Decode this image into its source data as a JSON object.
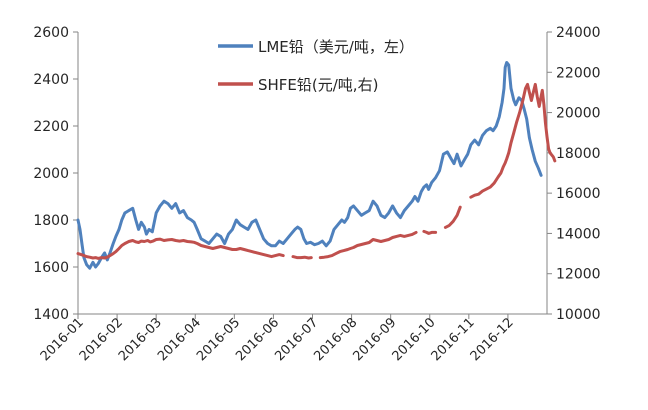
{
  "chart_data": {
    "type": "line",
    "title": "",
    "xlabel": "",
    "ylabel": "",
    "y2label": "",
    "grid": false,
    "legend_position": "top-center",
    "x_categories": [
      "2016-01",
      "2016-02",
      "2016-03",
      "2016-04",
      "2016-05",
      "2016-06",
      "2016-07",
      "2016-08",
      "2016-09",
      "2016-10",
      "2016-11",
      "2016-12"
    ],
    "x_range": [
      0,
      12
    ],
    "ylim": [
      1400,
      2600
    ],
    "yticks": [
      1400,
      1600,
      1800,
      2000,
      2200,
      2400,
      2600
    ],
    "y2lim": [
      10000,
      24000
    ],
    "y2ticks": [
      10000,
      12000,
      14000,
      16000,
      18000,
      20000,
      22000,
      24000
    ],
    "series": [
      {
        "name": "LME铅（美元/吨，左）",
        "axis": "left",
        "color": "#4f81bd",
        "points": [
          [
            0.0,
            1800
          ],
          [
            0.05,
            1760
          ],
          [
            0.1,
            1700
          ],
          [
            0.15,
            1640
          ],
          [
            0.22,
            1610
          ],
          [
            0.3,
            1595
          ],
          [
            0.38,
            1620
          ],
          [
            0.45,
            1600
          ],
          [
            0.52,
            1615
          ],
          [
            0.6,
            1640
          ],
          [
            0.68,
            1660
          ],
          [
            0.75,
            1630
          ],
          [
            0.82,
            1660
          ],
          [
            0.9,
            1700
          ],
          [
            0.97,
            1730
          ],
          [
            1.05,
            1760
          ],
          [
            1.12,
            1800
          ],
          [
            1.2,
            1830
          ],
          [
            1.3,
            1840
          ],
          [
            1.4,
            1850
          ],
          [
            1.48,
            1800
          ],
          [
            1.55,
            1760
          ],
          [
            1.62,
            1790
          ],
          [
            1.7,
            1770
          ],
          [
            1.75,
            1740
          ],
          [
            1.82,
            1760
          ],
          [
            1.9,
            1750
          ],
          [
            2.0,
            1830
          ],
          [
            2.1,
            1860
          ],
          [
            2.2,
            1880
          ],
          [
            2.3,
            1870
          ],
          [
            2.4,
            1850
          ],
          [
            2.5,
            1870
          ],
          [
            2.6,
            1830
          ],
          [
            2.7,
            1840
          ],
          [
            2.8,
            1810
          ],
          [
            2.9,
            1800
          ],
          [
            2.97,
            1790
          ],
          [
            3.05,
            1760
          ],
          [
            3.15,
            1720
          ],
          [
            3.25,
            1710
          ],
          [
            3.35,
            1700
          ],
          [
            3.45,
            1720
          ],
          [
            3.55,
            1740
          ],
          [
            3.65,
            1730
          ],
          [
            3.75,
            1700
          ],
          [
            3.85,
            1740
          ],
          [
            3.95,
            1760
          ],
          [
            4.05,
            1800
          ],
          [
            4.15,
            1780
          ],
          [
            4.25,
            1770
          ],
          [
            4.35,
            1760
          ],
          [
            4.45,
            1790
          ],
          [
            4.55,
            1800
          ],
          [
            4.65,
            1760
          ],
          [
            4.75,
            1720
          ],
          [
            4.85,
            1700
          ],
          [
            4.95,
            1690
          ],
          [
            5.05,
            1690
          ],
          [
            5.15,
            1710
          ],
          [
            5.25,
            1700
          ],
          [
            5.35,
            1720
          ],
          [
            5.45,
            1740
          ],
          [
            5.55,
            1760
          ],
          [
            5.62,
            1770
          ],
          [
            5.7,
            1760
          ],
          [
            5.78,
            1720
          ],
          [
            5.85,
            1700
          ],
          [
            5.95,
            1705
          ],
          [
            6.05,
            1695
          ],
          [
            6.15,
            1700
          ],
          [
            6.25,
            1710
          ],
          [
            6.35,
            1690
          ],
          [
            6.45,
            1710
          ],
          [
            6.55,
            1760
          ],
          [
            6.65,
            1780
          ],
          [
            6.75,
            1800
          ],
          [
            6.82,
            1790
          ],
          [
            6.9,
            1810
          ],
          [
            6.97,
            1850
          ],
          [
            7.05,
            1860
          ],
          [
            7.15,
            1840
          ],
          [
            7.25,
            1820
          ],
          [
            7.35,
            1830
          ],
          [
            7.45,
            1840
          ],
          [
            7.55,
            1880
          ],
          [
            7.65,
            1860
          ],
          [
            7.75,
            1820
          ],
          [
            7.85,
            1810
          ],
          [
            7.95,
            1830
          ],
          [
            8.05,
            1860
          ],
          [
            8.15,
            1830
          ],
          [
            8.25,
            1810
          ],
          [
            8.35,
            1840
          ],
          [
            8.45,
            1860
          ],
          [
            8.55,
            1880
          ],
          [
            8.62,
            1900
          ],
          [
            8.7,
            1880
          ],
          [
            8.78,
            1920
          ],
          [
            8.85,
            1940
          ],
          [
            8.92,
            1950
          ],
          [
            8.97,
            1930
          ],
          [
            9.05,
            1960
          ],
          [
            9.15,
            1980
          ],
          [
            9.25,
            2010
          ],
          [
            9.35,
            2080
          ],
          [
            9.45,
            2090
          ],
          [
            9.55,
            2060
          ],
          [
            9.62,
            2040
          ],
          [
            9.7,
            2080
          ],
          [
            9.8,
            2030
          ],
          [
            9.9,
            2060
          ],
          [
            9.97,
            2080
          ],
          [
            10.05,
            2120
          ],
          [
            10.15,
            2140
          ],
          [
            10.25,
            2120
          ],
          [
            10.35,
            2160
          ],
          [
            10.45,
            2180
          ],
          [
            10.55,
            2190
          ],
          [
            10.62,
            2180
          ],
          [
            10.7,
            2200
          ],
          [
            10.78,
            2240
          ],
          [
            10.85,
            2300
          ],
          [
            10.9,
            2360
          ],
          [
            10.93,
            2450
          ],
          [
            10.97,
            2470
          ],
          [
            11.02,
            2460
          ],
          [
            11.08,
            2360
          ],
          [
            11.15,
            2310
          ],
          [
            11.2,
            2290
          ],
          [
            11.28,
            2320
          ],
          [
            11.35,
            2310
          ],
          [
            11.42,
            2270
          ],
          [
            11.48,
            2230
          ],
          [
            11.55,
            2150
          ],
          [
            11.62,
            2100
          ],
          [
            11.7,
            2050
          ],
          [
            11.78,
            2020
          ],
          [
            11.85,
            1990
          ]
        ]
      },
      {
        "name": "SHFE铅(元/吨,右)",
        "axis": "right",
        "color": "#c0504d",
        "points": [
          [
            0.0,
            13000
          ],
          [
            0.08,
            12950
          ],
          [
            0.15,
            12900
          ],
          [
            0.22,
            12850
          ],
          [
            0.3,
            12820
          ],
          [
            0.38,
            12780
          ],
          [
            0.45,
            12800
          ],
          [
            0.52,
            12760
          ],
          [
            0.6,
            12800
          ],
          [
            0.68,
            12780
          ],
          [
            0.75,
            12820
          ],
          [
            0.82,
            12900
          ],
          [
            0.9,
            13000
          ],
          [
            0.97,
            13100
          ],
          [
            1.05,
            13250
          ],
          [
            1.12,
            13400
          ],
          [
            1.2,
            13500
          ],
          [
            1.3,
            13600
          ],
          [
            1.4,
            13650
          ],
          [
            1.48,
            13580
          ],
          [
            1.55,
            13550
          ],
          [
            1.62,
            13620
          ],
          [
            1.7,
            13600
          ],
          [
            1.78,
            13650
          ],
          [
            1.85,
            13580
          ],
          [
            1.92,
            13620
          ],
          [
            2.0,
            13700
          ],
          [
            2.1,
            13720
          ],
          [
            2.2,
            13650
          ],
          [
            2.3,
            13680
          ],
          [
            2.4,
            13700
          ],
          [
            2.5,
            13650
          ],
          [
            2.6,
            13620
          ],
          [
            2.7,
            13650
          ],
          [
            2.8,
            13600
          ],
          [
            2.9,
            13580
          ],
          [
            2.97,
            13560
          ],
          [
            3.05,
            13500
          ],
          [
            3.15,
            13400
          ],
          [
            3.25,
            13350
          ],
          [
            3.35,
            13300
          ],
          [
            3.45,
            13250
          ],
          [
            3.55,
            13300
          ],
          [
            3.65,
            13350
          ],
          [
            3.75,
            13300
          ],
          [
            3.85,
            13250
          ],
          [
            3.95,
            13200
          ],
          [
            4.05,
            13200
          ],
          [
            4.15,
            13250
          ],
          [
            4.25,
            13200
          ],
          [
            4.35,
            13150
          ],
          [
            4.45,
            13100
          ],
          [
            4.55,
            13050
          ],
          [
            4.65,
            13000
          ],
          [
            4.75,
            12950
          ],
          [
            4.85,
            12900
          ],
          [
            4.95,
            12850
          ],
          [
            5.05,
            12900
          ],
          [
            5.15,
            12950
          ],
          [
            5.25,
            12900
          ],
          [
            5.5,
            12850
          ],
          [
            5.6,
            12800
          ],
          [
            5.7,
            12800
          ],
          [
            5.8,
            12820
          ],
          [
            5.9,
            12780
          ],
          [
            5.97,
            12800
          ],
          [
            6.2,
            12800
          ],
          [
            6.3,
            12820
          ],
          [
            6.4,
            12850
          ],
          [
            6.5,
            12900
          ],
          [
            6.6,
            13000
          ],
          [
            6.7,
            13100
          ],
          [
            6.8,
            13150
          ],
          [
            6.9,
            13200
          ],
          [
            6.97,
            13250
          ],
          [
            7.05,
            13300
          ],
          [
            7.15,
            13400
          ],
          [
            7.25,
            13450
          ],
          [
            7.35,
            13500
          ],
          [
            7.45,
            13550
          ],
          [
            7.55,
            13700
          ],
          [
            7.65,
            13650
          ],
          [
            7.75,
            13600
          ],
          [
            7.85,
            13650
          ],
          [
            7.95,
            13700
          ],
          [
            8.05,
            13800
          ],
          [
            8.15,
            13850
          ],
          [
            8.25,
            13900
          ],
          [
            8.35,
            13850
          ],
          [
            8.45,
            13900
          ],
          [
            8.55,
            13950
          ],
          [
            8.65,
            14050
          ],
          [
            8.85,
            14100
          ],
          [
            8.92,
            14050
          ],
          [
            8.97,
            14000
          ],
          [
            9.05,
            14050
          ],
          [
            9.15,
            14050
          ],
          [
            9.4,
            14300
          ],
          [
            9.5,
            14400
          ],
          [
            9.6,
            14600
          ],
          [
            9.7,
            14900
          ],
          [
            9.78,
            15300
          ],
          [
            10.05,
            15800
          ],
          [
            10.15,
            15900
          ],
          [
            10.25,
            15950
          ],
          [
            10.35,
            16100
          ],
          [
            10.45,
            16200
          ],
          [
            10.55,
            16300
          ],
          [
            10.65,
            16500
          ],
          [
            10.75,
            16800
          ],
          [
            10.82,
            17000
          ],
          [
            10.88,
            17300
          ],
          [
            10.93,
            17500
          ],
          [
            10.97,
            17700
          ],
          [
            11.02,
            18000
          ],
          [
            11.08,
            18500
          ],
          [
            11.15,
            19000
          ],
          [
            11.22,
            19500
          ],
          [
            11.3,
            20000
          ],
          [
            11.38,
            20600
          ],
          [
            11.45,
            21200
          ],
          [
            11.5,
            21400
          ],
          [
            11.55,
            21000
          ],
          [
            11.6,
            20600
          ],
          [
            11.65,
            21000
          ],
          [
            11.7,
            21400
          ],
          [
            11.75,
            20800
          ],
          [
            11.8,
            20300
          ],
          [
            11.85,
            20800
          ],
          [
            11.88,
            21100
          ],
          [
            11.92,
            20400
          ],
          [
            11.96,
            19500
          ],
          [
            12.0,
            18800
          ],
          [
            12.04,
            18200
          ],
          [
            12.08,
            18000
          ],
          [
            12.12,
            17900
          ],
          [
            12.16,
            17800
          ],
          [
            12.2,
            17600
          ]
        ]
      }
    ]
  }
}
